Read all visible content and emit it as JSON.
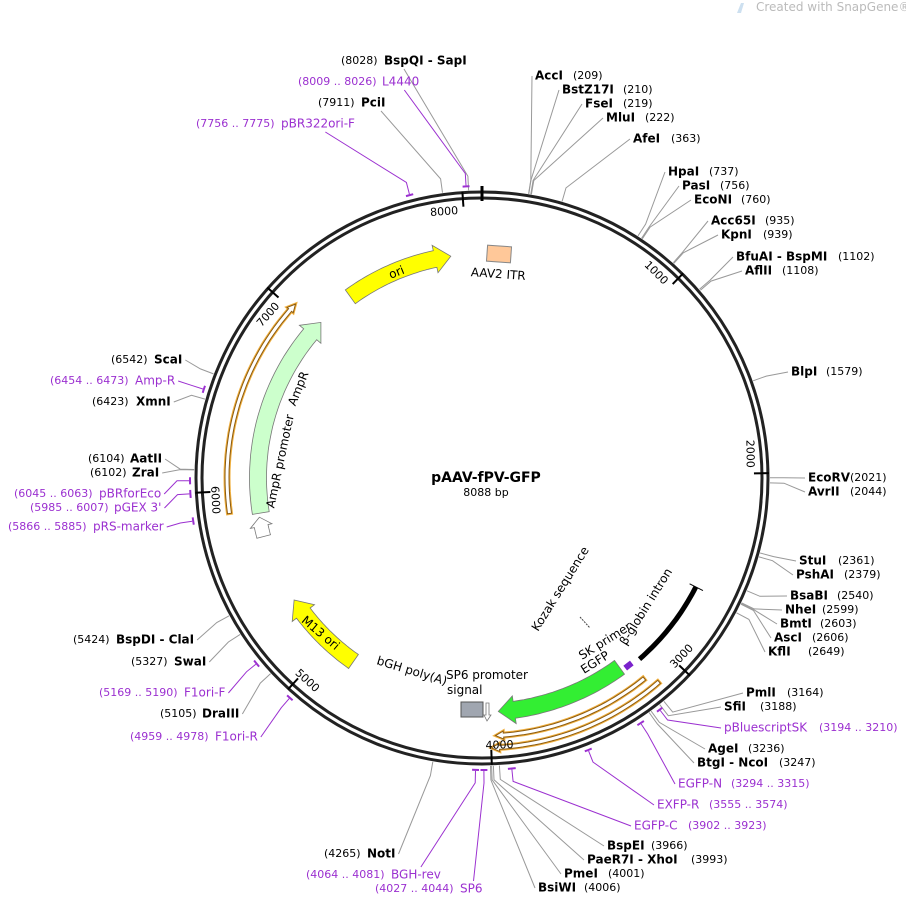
{
  "watermark": "Created with SnapGene®",
  "plasmid": {
    "name": "pAAV-fPV-GFP",
    "size": {
      "value": 8088,
      "label": "8088 bp"
    }
  },
  "ticks": [
    1000,
    2000,
    3000,
    4000,
    5000,
    6000,
    7000,
    8000
  ],
  "enzymes": [
    {
      "name": "AccI",
      "site": {
        "value": 209,
        "label": "(209)"
      }
    },
    {
      "name": "BstZ17I",
      "site": {
        "value": 210,
        "label": "(210)"
      }
    },
    {
      "name": "FseI",
      "site": {
        "value": 219,
        "label": "(219)"
      }
    },
    {
      "name": "MluI",
      "site": {
        "value": 222,
        "label": "(222)"
      }
    },
    {
      "name": "AfeI",
      "site": {
        "value": 363,
        "label": "(363)"
      }
    },
    {
      "name": "HpaI",
      "site": {
        "value": 737,
        "label": "(737)"
      }
    },
    {
      "name": "PasI",
      "site": {
        "value": 756,
        "label": "(756)"
      }
    },
    {
      "name": "EcoNI",
      "site": {
        "value": 760,
        "label": "(760)"
      }
    },
    {
      "name": "Acc65I",
      "site": {
        "value": 935,
        "label": "(935)"
      }
    },
    {
      "name": "KpnI",
      "site": {
        "value": 939,
        "label": "(939)"
      }
    },
    {
      "name": "BfuAI - BspMI",
      "site": {
        "value": 1102,
        "label": "(1102)"
      }
    },
    {
      "name": "AflII",
      "site": {
        "value": 1108,
        "label": "(1108)"
      }
    },
    {
      "name": "BlpI",
      "site": {
        "value": 1579,
        "label": "(1579)"
      }
    },
    {
      "name": "EcoRV",
      "site": {
        "value": 2021,
        "label": "(2021)"
      }
    },
    {
      "name": "AvrII",
      "site": {
        "value": 2044,
        "label": "(2044)"
      }
    },
    {
      "name": "StuI",
      "site": {
        "value": 2361,
        "label": "(2361)"
      }
    },
    {
      "name": "PshAI",
      "site": {
        "value": 2379,
        "label": "(2379)"
      }
    },
    {
      "name": "BsaBI",
      "site": {
        "value": 2540,
        "label": "(2540)"
      }
    },
    {
      "name": "NheI",
      "site": {
        "value": 2599,
        "label": "(2599)"
      }
    },
    {
      "name": "BmtI",
      "site": {
        "value": 2603,
        "label": "(2603)"
      }
    },
    {
      "name": "AscI",
      "site": {
        "value": 2606,
        "label": "(2606)"
      }
    },
    {
      "name": "KflI",
      "site": {
        "value": 2649,
        "label": "(2649)"
      }
    },
    {
      "name": "PmlI",
      "site": {
        "value": 3164,
        "label": "(3164)"
      }
    },
    {
      "name": "SfiI",
      "site": {
        "value": 3188,
        "label": "(3188)"
      }
    },
    {
      "name": "AgeI",
      "site": {
        "value": 3236,
        "label": "(3236)"
      }
    },
    {
      "name": "BtgI - NcoI",
      "site": {
        "value": 3247,
        "label": "(3247)"
      }
    },
    {
      "name": "BspEI",
      "site": {
        "value": 3966,
        "label": "(3966)"
      }
    },
    {
      "name": "PaeR7I - XhoI",
      "site": {
        "value": 3993,
        "label": "(3993)"
      }
    },
    {
      "name": "PmeI",
      "site": {
        "value": 4001,
        "label": "(4001)"
      }
    },
    {
      "name": "BsiWI",
      "site": {
        "value": 4006,
        "label": "(4006)"
      }
    },
    {
      "name": "NotI",
      "site": {
        "value": 4265,
        "label": "(4265)"
      }
    },
    {
      "name": "DraIII",
      "site": {
        "value": 5105,
        "label": "(5105)"
      }
    },
    {
      "name": "SwaI",
      "site": {
        "value": 5327,
        "label": "(5327)"
      }
    },
    {
      "name": "BspDI - ClaI",
      "site": {
        "value": 5424,
        "label": "(5424)"
      }
    },
    {
      "name": "ZraI",
      "site": {
        "value": 6102,
        "label": "(6102)"
      }
    },
    {
      "name": "AatII",
      "site": {
        "value": 6104,
        "label": "(6104)"
      }
    },
    {
      "name": "XmnI",
      "site": {
        "value": 6423,
        "label": "(6423)"
      }
    },
    {
      "name": "ScaI",
      "site": {
        "value": 6542,
        "label": "(6542)"
      }
    },
    {
      "name": "PciI",
      "site": {
        "value": 7911,
        "label": "(7911)"
      }
    },
    {
      "name": "BspQI - SapI",
      "site": {
        "value": 8028,
        "label": "(8028)"
      }
    }
  ],
  "primers": [
    {
      "name": "pBluescriptSK",
      "site": {
        "start": 3194,
        "end": 3210,
        "label": "(3194 .. 3210)"
      }
    },
    {
      "name": "EGFP-N",
      "site": {
        "start": 3294,
        "end": 3315,
        "label": "(3294 .. 3315)"
      }
    },
    {
      "name": "EXFP-R",
      "site": {
        "start": 3555,
        "end": 3574,
        "label": "(3555 .. 3574)"
      }
    },
    {
      "name": "EGFP-C",
      "site": {
        "start": 3902,
        "end": 3923,
        "label": "(3902 .. 3923)"
      }
    },
    {
      "name": "SP6",
      "site": {
        "start": 4027,
        "end": 4044,
        "label": "(4027 .. 4044)"
      }
    },
    {
      "name": "BGH-rev",
      "site": {
        "start": 4064,
        "end": 4081,
        "label": "(4064 .. 4081)"
      }
    },
    {
      "name": "F1ori-R",
      "site": {
        "start": 4959,
        "end": 4978,
        "label": "(4959 .. 4978)"
      }
    },
    {
      "name": "F1ori-F",
      "site": {
        "start": 5169,
        "end": 5190,
        "label": "(5169 .. 5190)"
      }
    },
    {
      "name": "pRS-marker",
      "site": {
        "start": 5866,
        "end": 5885,
        "label": "(5866 .. 5885)"
      }
    },
    {
      "name": "pGEX 3'",
      "site": {
        "start": 5985,
        "end": 6007,
        "label": "(5985 .. 6007)"
      }
    },
    {
      "name": "pBRforEco",
      "site": {
        "start": 6045,
        "end": 6063,
        "label": "(6045 .. 6063)"
      }
    },
    {
      "name": "Amp-R",
      "site": {
        "start": 6454,
        "end": 6473,
        "label": "(6454 .. 6473)"
      }
    },
    {
      "name": "pBR322ori-F",
      "site": {
        "start": 7756,
        "end": 7775,
        "label": "(7756 .. 7775)"
      }
    },
    {
      "name": "L4440",
      "site": {
        "start": 8009,
        "end": 8026,
        "label": "(8009 .. 8026)"
      }
    }
  ],
  "features": {
    "ori": "ori",
    "aav2_itr": "AAV2 ITR",
    "ampr": "AmpR",
    "ampr_promoter": "AmpR promoter",
    "m13_ori": "M13 ori",
    "bgh": [
      "bGH poly(A)",
      "signal"
    ],
    "sp6_promoter": "SP6 promoter",
    "egfp": "EGFP",
    "sk_primer": "SK primer",
    "kozak": "Kozak sequence",
    "beta_globin": "β-globin intron"
  }
}
